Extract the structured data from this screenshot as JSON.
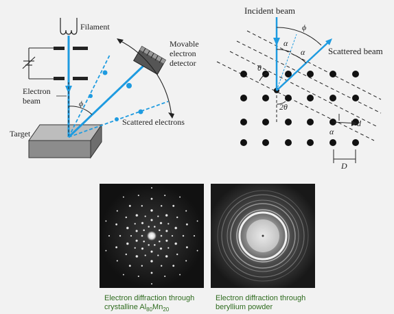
{
  "left_diagram": {
    "filament": "Filament",
    "detector_line1": "Movable",
    "detector_line2": "electron",
    "detector_line3": "detector",
    "beam_line1": "Electron",
    "beam_line2": "beam",
    "phi": "ϕ",
    "target": "Target",
    "scattered": "Scattered electrons"
  },
  "right_diagram": {
    "incident": "Incident beam",
    "phi": "ϕ",
    "alpha_top": "α",
    "alpha_mid": "α",
    "theta": "θ",
    "scattered": "Scattered beam",
    "two_theta": "2θ",
    "d": "d",
    "alpha_bottom": "α",
    "D": "D"
  },
  "captions": {
    "left_line1": "Electron diffraction through",
    "left_line2_pre": "crystalline Al",
    "left_sub1": "80",
    "left_mid": "Mn",
    "left_sub2": "20",
    "right_line1": "Electron diffraction through",
    "right_line2": "beryllium powder"
  },
  "colors": {
    "beam": "#1e9be0",
    "caption": "#2e6b1e"
  }
}
